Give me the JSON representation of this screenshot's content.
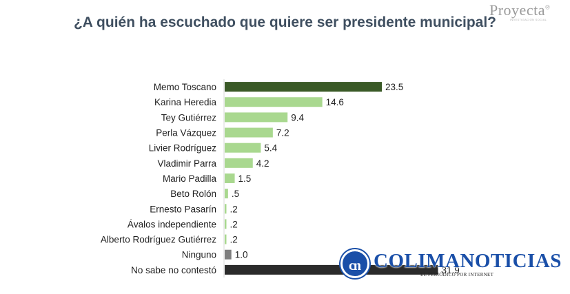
{
  "brand": {
    "logo": "Proyecta",
    "logo_mark": "®",
    "logo_tagline": "INVESTIGACIÓN SOCIAL"
  },
  "watermark": {
    "logo_letters": "cn",
    "name": "COLIMANOTICIAS",
    "tagline": "EL PERIÓDICO POR INTERNET"
  },
  "colors": {
    "highlight": "#3a5a27",
    "bar": "#a9d88f",
    "neutral": "#7f7f7f",
    "dark": "#2b2b2b",
    "title": "#3f4f60"
  },
  "chart_data": {
    "type": "bar",
    "orientation": "horizontal",
    "title": "¿A quién ha escuchado que quiere ser presidente municipal?",
    "categories": [
      "Memo Toscano",
      "Karina Heredia",
      "Tey Gutiérrez",
      "Perla Vázquez",
      "Livier Rodríguez",
      "Vladimir Parra",
      "Mario Padilla",
      "Beto Rolón",
      "Ernesto Pasarín",
      "Ávalos independiente",
      "Alberto Rodríguez Gutiérrez",
      "Ninguno",
      "No sabe no contestó"
    ],
    "values": [
      23.5,
      14.6,
      9.4,
      7.2,
      5.4,
      4.2,
      1.5,
      0.5,
      0.2,
      0.2,
      0.2,
      1.0,
      31.9
    ],
    "value_labels": [
      "23.5",
      "14.6",
      "9.4",
      "7.2",
      "5.4",
      "4.2",
      "1.5",
      ".5",
      ".2",
      ".2",
      ".2",
      "1.0",
      "31.9"
    ],
    "bar_colors": [
      "highlight",
      "bar",
      "bar",
      "bar",
      "bar",
      "bar",
      "bar",
      "bar",
      "bar",
      "bar",
      "bar",
      "neutral",
      "dark"
    ],
    "xlim": [
      0,
      31.9
    ],
    "grid": false,
    "legend": "none"
  }
}
